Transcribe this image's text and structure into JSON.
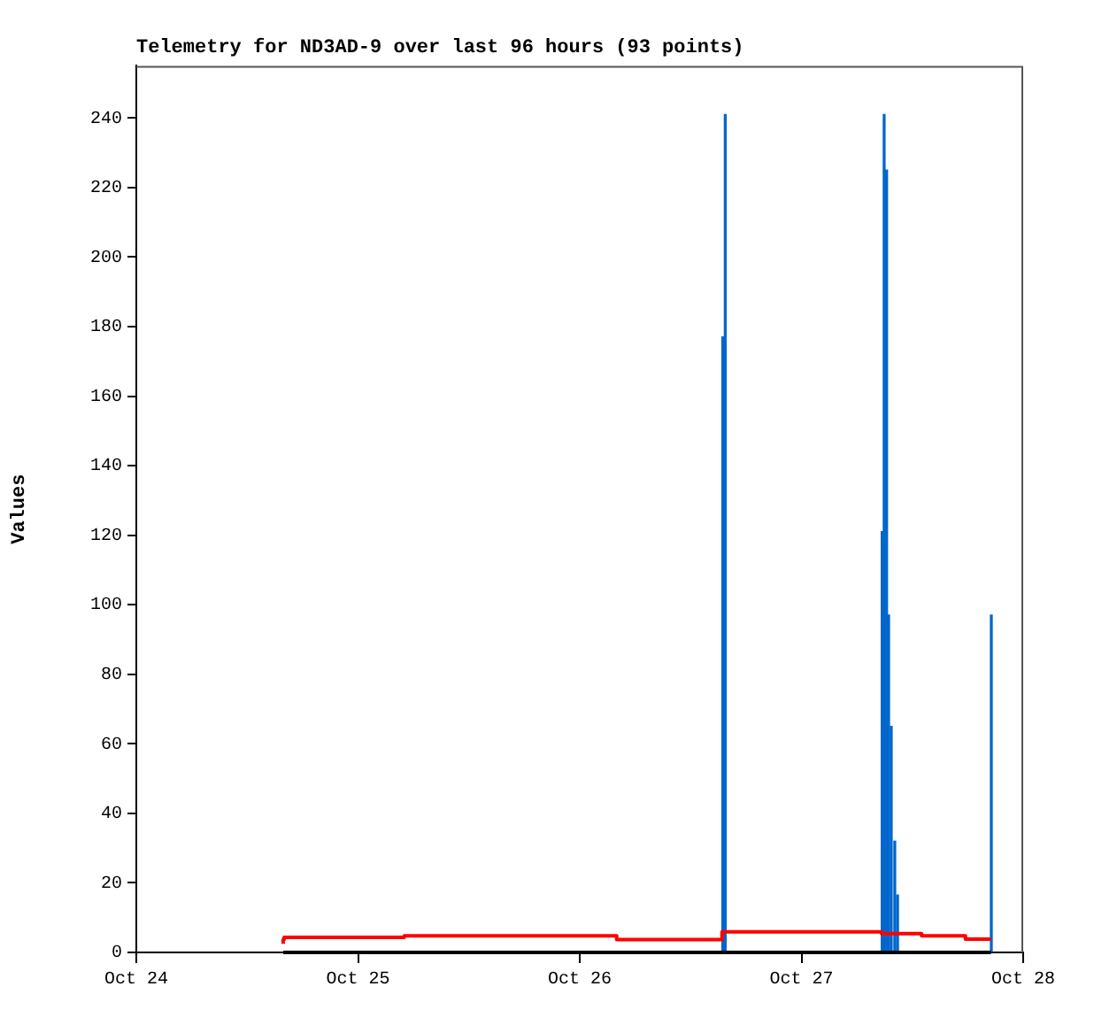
{
  "chart_data": {
    "type": "line",
    "title": "Telemetry for ND3AD-9 over last 96 hours (93 points)",
    "ylabel": "Values",
    "xlim": [
      "--10-24",
      "--10-28"
    ],
    "xticks": [
      {
        "value": "--10-24",
        "label": "Oct 24"
      },
      {
        "value": "--10-25",
        "label": "Oct 25"
      },
      {
        "value": "--10-26",
        "label": "Oct 26"
      },
      {
        "value": "--10-27",
        "label": "Oct 27"
      },
      {
        "value": "--10-28",
        "label": "Oct 28"
      }
    ],
    "ylim": [
      0,
      255
    ],
    "yticks": [
      0,
      20,
      40,
      60,
      80,
      100,
      120,
      140,
      160,
      180,
      200,
      220,
      240
    ],
    "grid": false,
    "legend": false,
    "series": [
      {
        "type": "step",
        "color": "#ff0000",
        "x": [
          "--10-24T15:54",
          "--10-24T16:00",
          "--10-25T05:00",
          "--10-26T04:00",
          "--10-26T15:24",
          "--10-27T08:40",
          "--10-27T13:00",
          "--10-27T17:45",
          "--10-27T19:40",
          "--10-27T20:30"
        ],
        "values": [
          2.5,
          3.7,
          4.3,
          4.8,
          3.7,
          5.9,
          5.4,
          4.8,
          3.8,
          3.8
        ]
      },
      {
        "color": "#000000",
        "x": [
          "--10-24T15:54",
          "--10-27T20:30"
        ],
        "values": [
          0,
          0
        ]
      },
      {
        "type": "bar",
        "color": "#0066cc",
        "x": [
          "--10-26T15:29",
          "--10-26T15:45",
          "--10-27T08:44",
          "--10-27T08:57",
          "--10-27T09:13",
          "--10-27T09:26",
          "--10-27T09:43",
          "--10-27T10:06",
          "--10-27T10:24",
          "--10-27T20:33"
        ],
        "values": [
          177,
          241,
          121,
          241,
          225,
          97,
          65,
          32,
          16.5,
          97
        ]
      }
    ]
  }
}
